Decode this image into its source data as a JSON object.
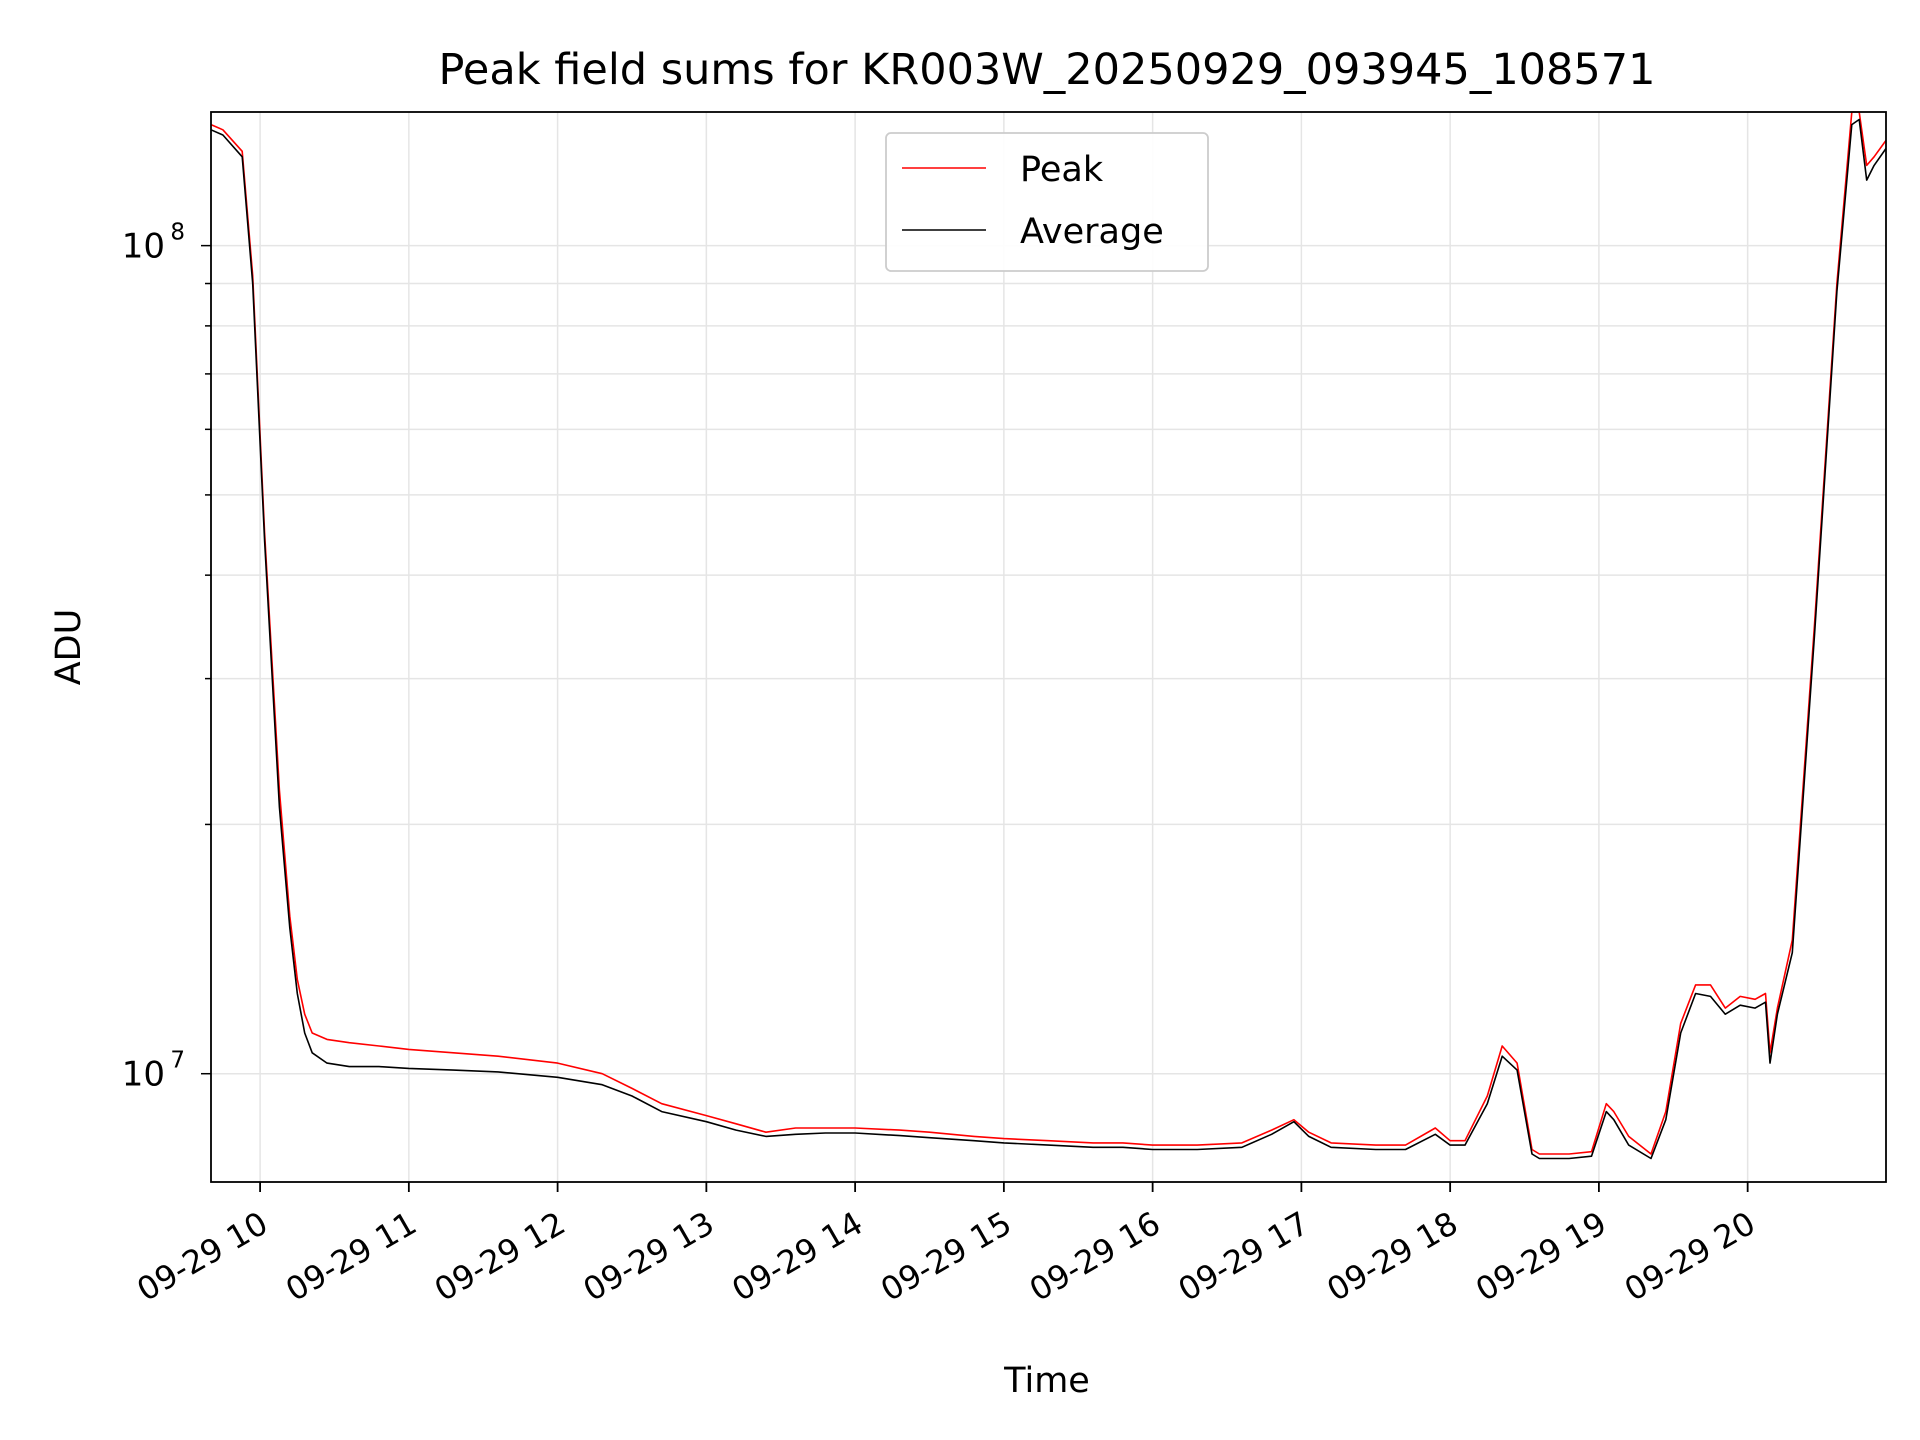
{
  "chart_data": {
    "type": "line",
    "title": "Peak field sums for KR003W_20250929_093945_108571",
    "xlabel": "Time",
    "ylabel": "ADU",
    "yscale": "log",
    "xlim": [
      9.67,
      20.93
    ],
    "ylim": [
      7400000,
      145000000
    ],
    "grid": true,
    "legend_location": "upper center",
    "x_ticks": [
      {
        "value": 10,
        "label": "09-29 10"
      },
      {
        "value": 11,
        "label": "09-29 11"
      },
      {
        "value": 12,
        "label": "09-29 12"
      },
      {
        "value": 13,
        "label": "09-29 13"
      },
      {
        "value": 14,
        "label": "09-29 14"
      },
      {
        "value": 15,
        "label": "09-29 15"
      },
      {
        "value": 16,
        "label": "09-29 16"
      },
      {
        "value": 17,
        "label": "09-29 17"
      },
      {
        "value": 18,
        "label": "09-29 18"
      },
      {
        "value": 19,
        "label": "09-29 19"
      },
      {
        "value": 20,
        "label": "09-29 20"
      }
    ],
    "y_ticks": [
      {
        "value": 10000000,
        "base": "10",
        "exp": "7"
      },
      {
        "value": 100000000,
        "base": "10",
        "exp": "8"
      }
    ],
    "series": [
      {
        "name": "Peak",
        "color": "#ff0000",
        "x": [
          9.67,
          9.75,
          9.88,
          9.95,
          10.03,
          10.13,
          10.2,
          10.25,
          10.3,
          10.35,
          10.45,
          10.6,
          10.8,
          11.0,
          11.3,
          11.6,
          12.0,
          12.3,
          12.5,
          12.7,
          13.0,
          13.2,
          13.4,
          13.6,
          13.8,
          14.0,
          14.3,
          14.5,
          14.8,
          15.0,
          15.3,
          15.6,
          15.8,
          16.0,
          16.3,
          16.6,
          16.8,
          16.95,
          17.05,
          17.2,
          17.5,
          17.6,
          17.7,
          17.9,
          18.0,
          18.1,
          18.25,
          18.35,
          18.45,
          18.55,
          18.6,
          18.8,
          18.95,
          19.05,
          19.1,
          19.2,
          19.35,
          19.45,
          19.55,
          19.65,
          19.75,
          19.85,
          19.95,
          20.05,
          20.12,
          20.15,
          20.2,
          20.3,
          20.45,
          20.6,
          20.7,
          20.75,
          20.8,
          20.85,
          20.93
        ],
        "values": [
          140000000,
          138000000,
          130000000,
          92000000,
          45000000,
          22000000,
          15500000,
          13000000,
          11800000,
          11200000,
          11000000,
          10900000,
          10800000,
          10700000,
          10600000,
          10500000,
          10300000,
          10000000,
          9600000,
          9200000,
          8900000,
          8700000,
          8500000,
          8600000,
          8600000,
          8600000,
          8550000,
          8500000,
          8400000,
          8350000,
          8300000,
          8250000,
          8250000,
          8200000,
          8200000,
          8250000,
          8550000,
          8800000,
          8500000,
          8250000,
          8200000,
          8200000,
          8200000,
          8600000,
          8300000,
          8300000,
          9400000,
          10800000,
          10300000,
          8100000,
          8000000,
          8000000,
          8050000,
          9200000,
          9000000,
          8400000,
          8000000,
          9000000,
          11500000,
          12800000,
          12800000,
          12000000,
          12400000,
          12300000,
          12500000,
          10600000,
          12000000,
          14500000,
          35000000,
          90000000,
          145000000,
          145000000,
          125000000,
          128000000,
          134000000
        ]
      },
      {
        "name": "Average",
        "color": "#000000",
        "x": [
          9.67,
          9.75,
          9.88,
          9.95,
          10.03,
          10.13,
          10.2,
          10.25,
          10.3,
          10.35,
          10.45,
          10.6,
          10.8,
          11.0,
          11.3,
          11.6,
          12.0,
          12.3,
          12.5,
          12.7,
          13.0,
          13.2,
          13.4,
          13.6,
          13.8,
          14.0,
          14.3,
          14.5,
          14.8,
          15.0,
          15.3,
          15.6,
          15.8,
          16.0,
          16.3,
          16.6,
          16.8,
          16.95,
          17.05,
          17.2,
          17.5,
          17.6,
          17.7,
          17.9,
          18.0,
          18.1,
          18.25,
          18.35,
          18.45,
          18.55,
          18.6,
          18.8,
          18.95,
          19.05,
          19.1,
          19.2,
          19.35,
          19.45,
          19.55,
          19.65,
          19.75,
          19.85,
          19.95,
          20.05,
          20.12,
          20.15,
          20.2,
          20.3,
          20.45,
          20.6,
          20.7,
          20.75,
          20.8,
          20.85,
          20.93
        ],
        "values": [
          138000000,
          136000000,
          128000000,
          90000000,
          44000000,
          21000000,
          15000000,
          12500000,
          11200000,
          10600000,
          10300000,
          10200000,
          10200000,
          10150000,
          10100000,
          10050000,
          9900000,
          9700000,
          9400000,
          9000000,
          8750000,
          8550000,
          8400000,
          8450000,
          8480000,
          8480000,
          8420000,
          8370000,
          8300000,
          8250000,
          8200000,
          8150000,
          8150000,
          8100000,
          8100000,
          8150000,
          8450000,
          8750000,
          8400000,
          8150000,
          8100000,
          8100000,
          8100000,
          8450000,
          8200000,
          8200000,
          9200000,
          10500000,
          10100000,
          8000000,
          7900000,
          7900000,
          7950000,
          9000000,
          8800000,
          8200000,
          7900000,
          8800000,
          11200000,
          12500000,
          12400000,
          11800000,
          12100000,
          12000000,
          12200000,
          10300000,
          11800000,
          14000000,
          34000000,
          88000000,
          140000000,
          142000000,
          120000000,
          125000000,
          131000000
        ]
      }
    ]
  }
}
